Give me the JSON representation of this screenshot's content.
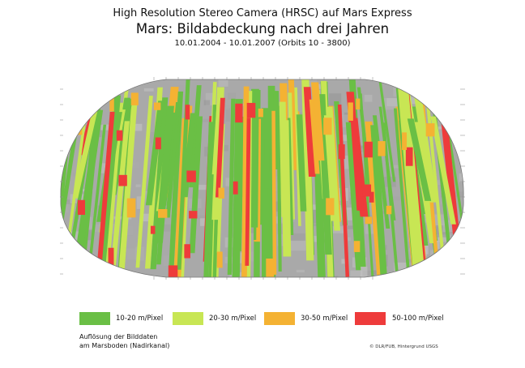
{
  "titles": {
    "line1": "High Resolution Stereo Camera (HRSC) auf Mars Express",
    "line2": "Mars: Bildabdeckung nach drei Jahren",
    "line3": "10.01.2004 - 10.01.2007 (Orbits 10 - 3800)"
  },
  "map": {
    "projection": "Robinson-like world map of Mars",
    "base": "grey shaded relief (USGS)",
    "background_color": "#a9a9a9"
  },
  "legend": [
    {
      "label": "10-20 m/Pixel",
      "color": "#6abf45"
    },
    {
      "label": "20-30 m/Pixel",
      "color": "#c8e654"
    },
    {
      "label": "30-50 m/Pixel",
      "color": "#f4b233"
    },
    {
      "label": "50-100 m/Pixel",
      "color": "#ee3b3b"
    }
  ],
  "note": {
    "line1": "Auflösung der Bilddaten",
    "line2": "am Marsboden (Nadirkanal)"
  },
  "credit": "© DLR/FUB, Hintergrund USGS"
}
